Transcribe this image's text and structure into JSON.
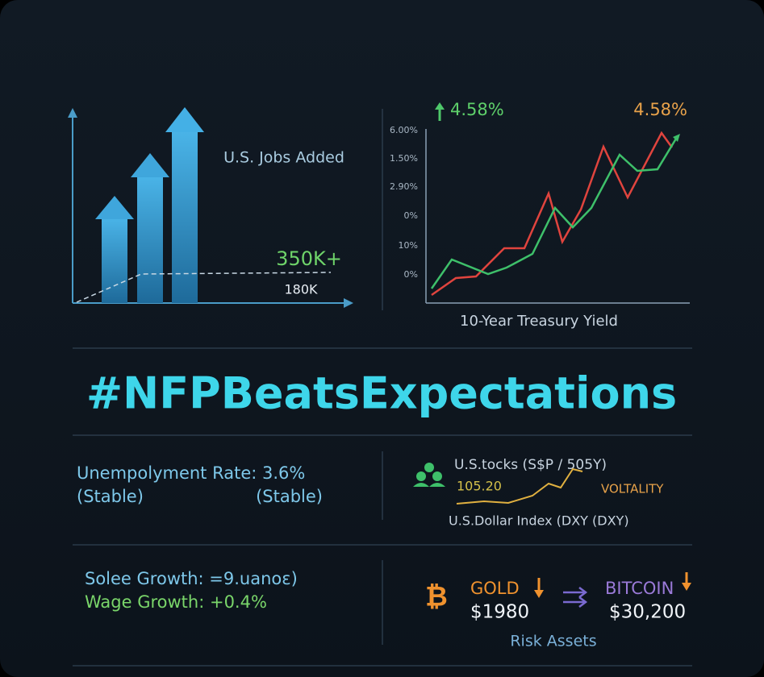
{
  "jobs_panel": {
    "title": "U.S. Jobs Added",
    "actual": "350K+",
    "expected": "180K"
  },
  "yield_panel": {
    "left_change": "4.58%",
    "right_change": "4.58%",
    "y_labels": [
      "6.00%",
      "1.50%",
      "2.90%",
      "0%",
      "10%",
      "0%"
    ],
    "caption": "10-Year Treasury Yield"
  },
  "headline": "#NFPBeatsExpectations",
  "unemployment": {
    "line": "Unempolyment Rate: 3.6%",
    "left_note": "(Stable)",
    "right_note": "(Stable)"
  },
  "markets": {
    "stocks": "U.S.tocks (S$P / 505Y)",
    "dxy_value": "105.20",
    "volatility": "VOLTALITY",
    "dxy": "U.S.Dollar Index (DXY (DXY)"
  },
  "wages": {
    "line1": "Solee Growth: =9.uanoɛ)",
    "line2": "Wage Growth: +0.4%"
  },
  "assets": {
    "gold": "GOLD",
    "gold_price": "$1980",
    "bitcoin": "BITCOIN",
    "bitcoin_price": "$30,200",
    "caption": "Risk Assets"
  }
}
